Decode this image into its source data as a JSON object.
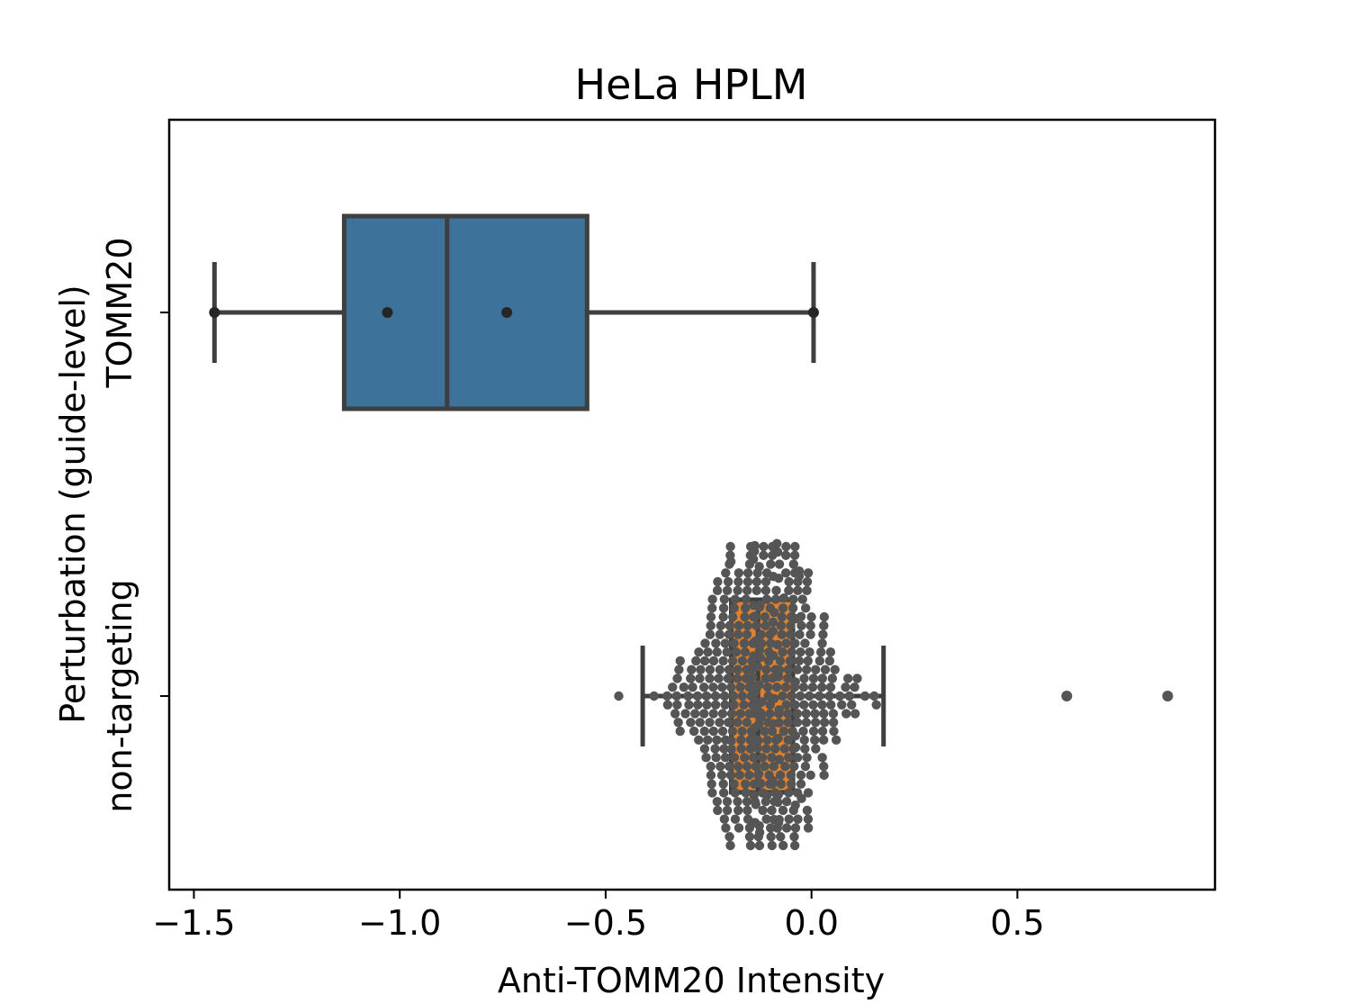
{
  "chart_data": {
    "type": "boxplot",
    "title": "HeLa HPLM",
    "xlabel": "Anti-TOMM20 Intensity",
    "ylabel": "Perturbation (guide-level)",
    "orientation": "horizontal",
    "xlim": [
      -1.56,
      0.98
    ],
    "xticks": [
      -1.5,
      -1.0,
      -0.5,
      0.0,
      0.5
    ],
    "xtick_labels": [
      "−1.5",
      "−1.0",
      "−0.5",
      "0.0",
      "0.5"
    ],
    "categories": [
      "TOMM20",
      "non-targeting"
    ],
    "grid": false,
    "series": [
      {
        "name": "TOMM20",
        "color": "#3d729a",
        "box": {
          "whislo": -1.45,
          "q1": -1.135,
          "median": -0.885,
          "q3": -0.545,
          "whishi": 0.005
        },
        "points": [
          -1.45,
          -1.03,
          -0.74,
          0.005
        ]
      },
      {
        "name": "non-targeting",
        "color": "#e1812c",
        "box": {
          "whislo": -0.41,
          "q1": -0.195,
          "median": -0.13,
          "q3": -0.045,
          "whishi": 0.175
        },
        "points_summary": {
          "count": 480,
          "approx_mean": -0.12,
          "approx_sd": 0.1
        },
        "outliers": [
          0.62,
          0.865
        ]
      }
    ],
    "colors": {
      "box_edge": "#3f3f3f",
      "swarm_point": "#555555",
      "tomm20_point": "#262626"
    }
  }
}
